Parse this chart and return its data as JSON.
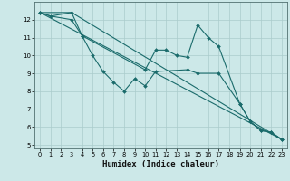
{
  "xlabel": "Humidex (Indice chaleur)",
  "bg_color": "#cce8e8",
  "grid_color": "#aacccc",
  "line_color": "#1a6b6b",
  "xlim": [
    -0.5,
    23.5
  ],
  "ylim": [
    4.8,
    13.0
  ],
  "yticks": [
    5,
    6,
    7,
    8,
    9,
    10,
    11,
    12
  ],
  "xticks": [
    0,
    1,
    2,
    3,
    4,
    5,
    6,
    7,
    8,
    9,
    10,
    11,
    12,
    13,
    14,
    15,
    16,
    17,
    18,
    19,
    20,
    21,
    22,
    23
  ],
  "series": [
    {
      "x": [
        0,
        1,
        3,
        4,
        10,
        11,
        12,
        13,
        14,
        15,
        16,
        17,
        19,
        20,
        21,
        22,
        23
      ],
      "y": [
        12.4,
        12.2,
        12.0,
        11.1,
        9.2,
        10.3,
        10.3,
        10.0,
        9.9,
        11.7,
        11.0,
        10.5,
        7.3,
        6.3,
        5.8,
        5.7,
        5.3
      ],
      "marker": true
    },
    {
      "x": [
        0,
        3,
        4,
        5,
        6,
        7,
        8,
        9,
        10,
        11,
        14,
        15,
        17,
        19,
        20,
        21,
        22,
        23
      ],
      "y": [
        12.4,
        12.4,
        11.1,
        10.0,
        9.1,
        8.5,
        8.0,
        8.7,
        8.3,
        9.1,
        9.2,
        9.0,
        9.0,
        7.3,
        6.3,
        5.8,
        5.7,
        5.3
      ],
      "marker": true
    },
    {
      "x": [
        0,
        1,
        3,
        23
      ],
      "y": [
        12.4,
        12.2,
        12.4,
        5.3
      ],
      "marker": false
    },
    {
      "x": [
        0,
        23
      ],
      "y": [
        12.4,
        5.3
      ],
      "marker": false
    }
  ]
}
